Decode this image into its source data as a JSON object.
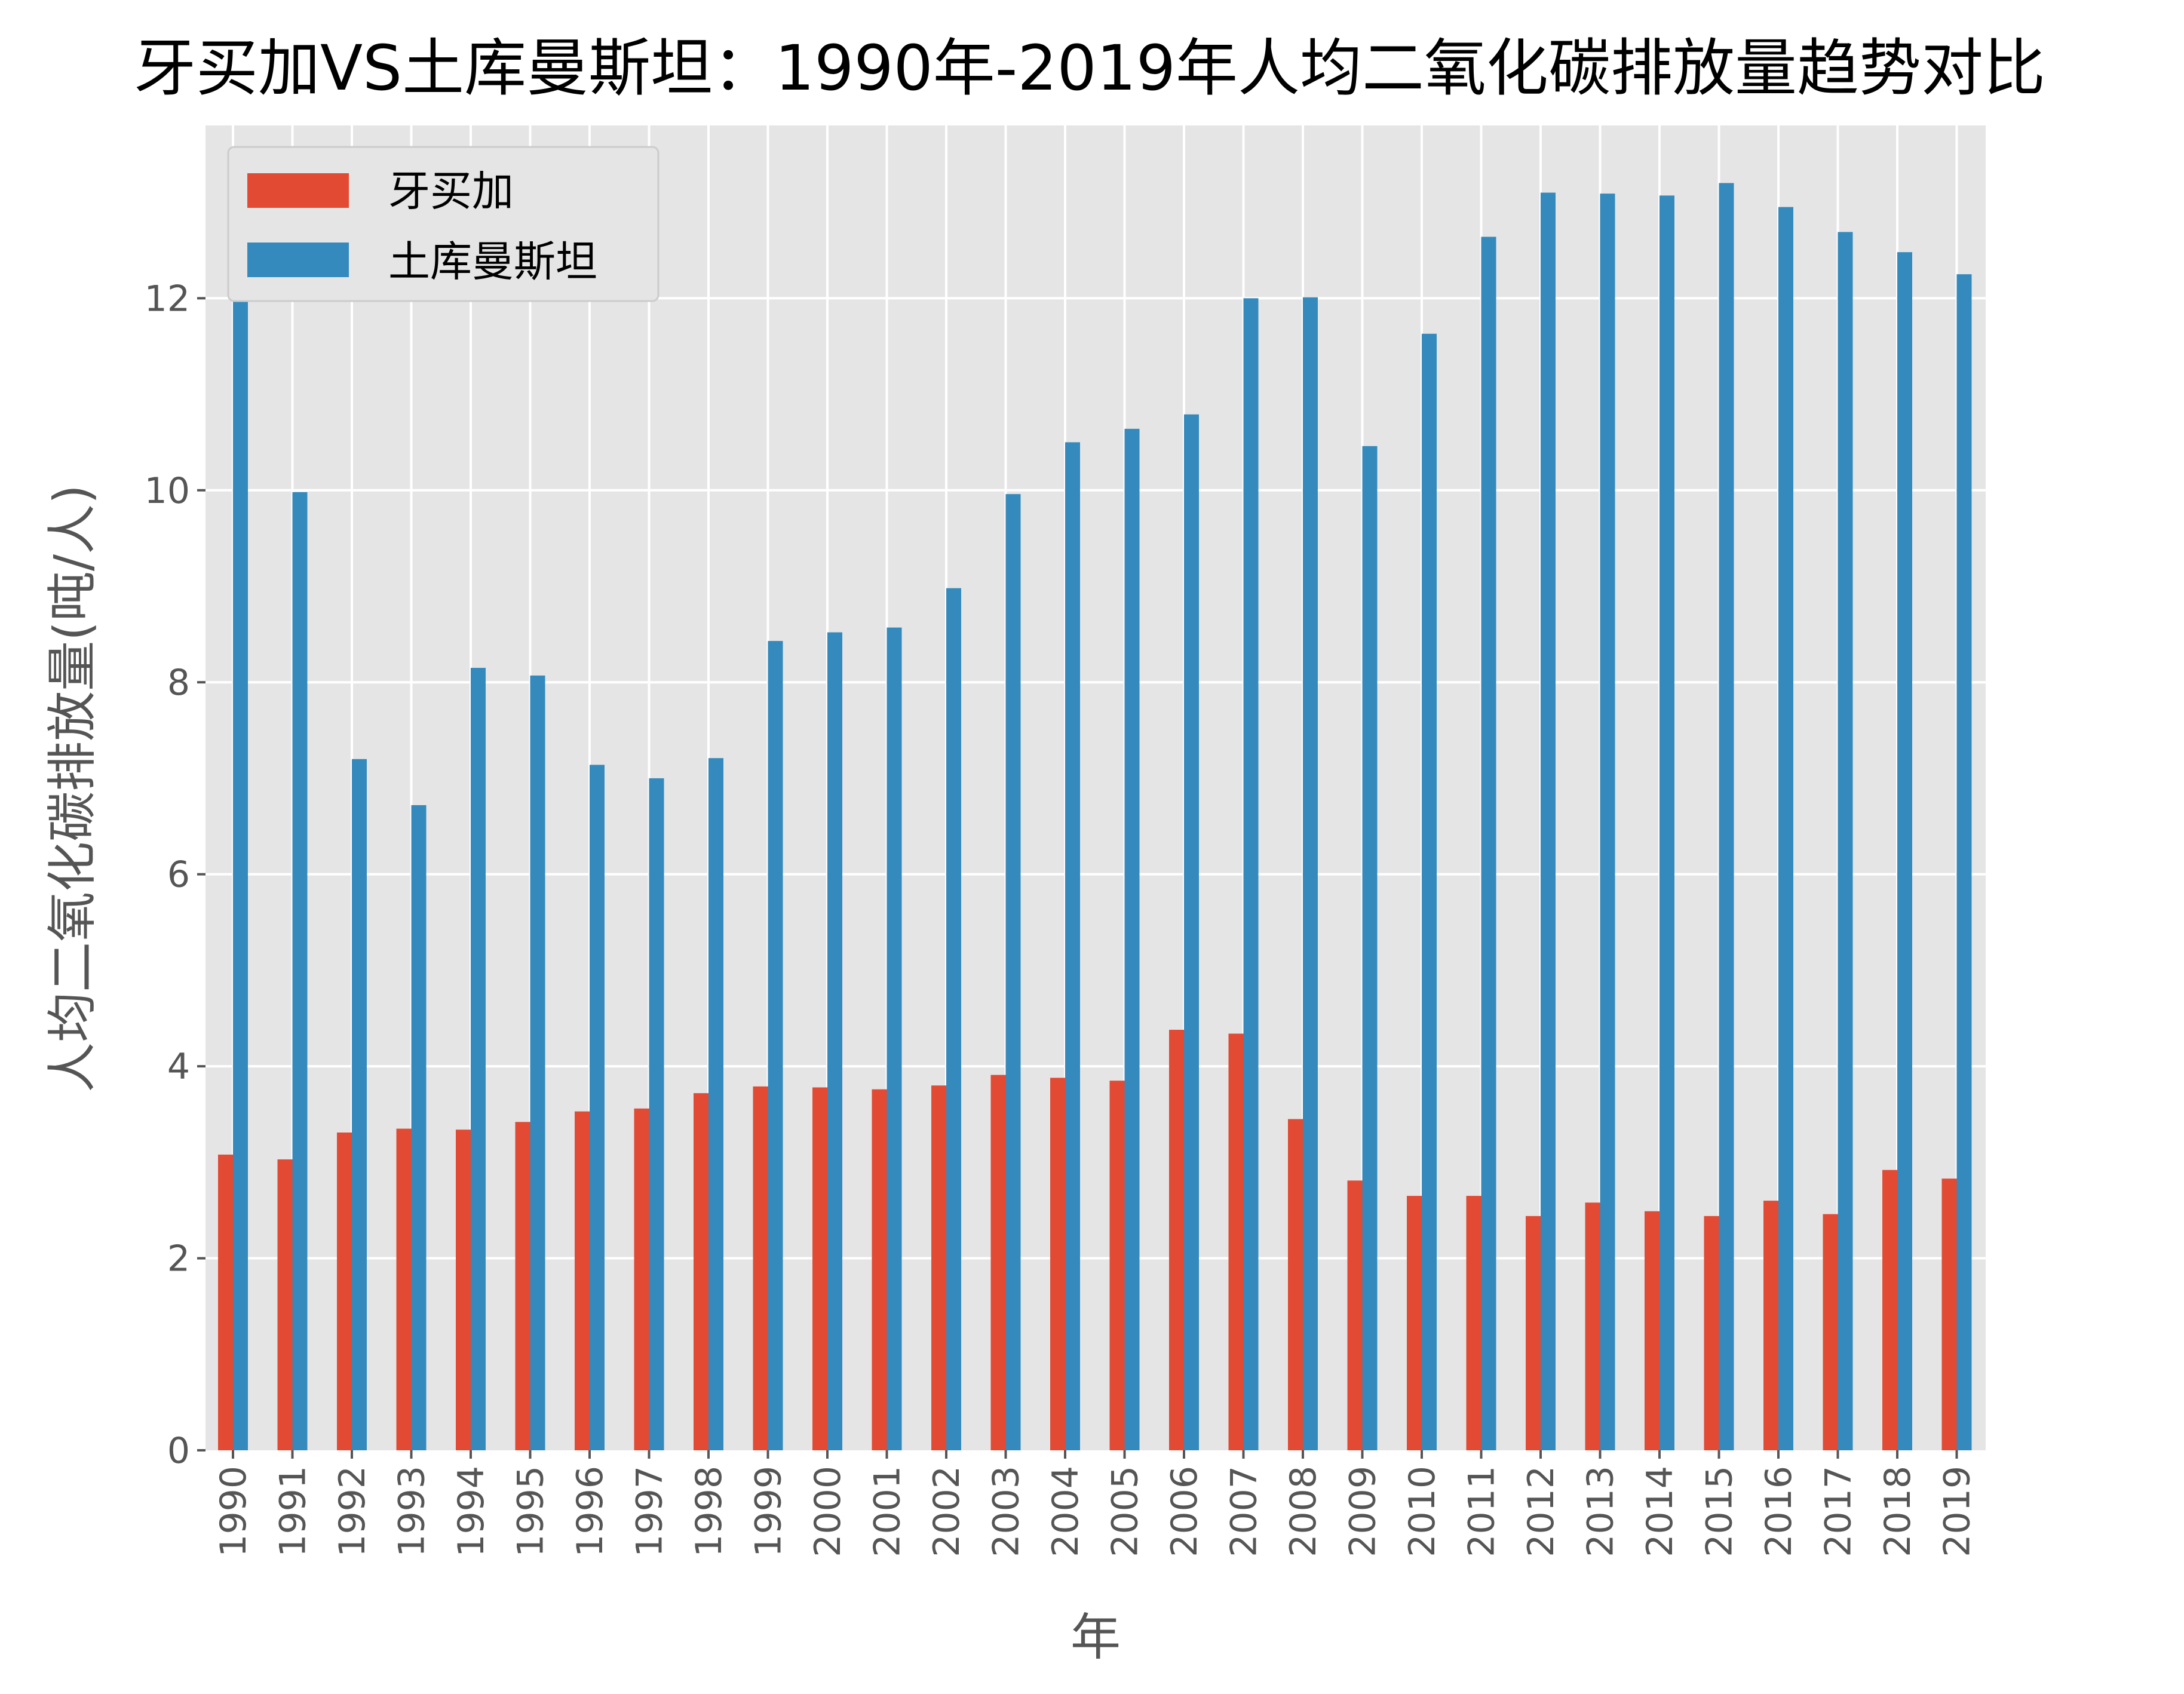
{
  "chart_data": {
    "type": "bar",
    "title": "牙买加VS土库曼斯坦：1990年-2019年人均二氧化碳排放量趋势对比",
    "xlabel": "年",
    "ylabel": "人均二氧化碳排放量(吨/人)",
    "ylim": [
      0,
      13.8
    ],
    "yticks": [
      0,
      2,
      4,
      6,
      8,
      10,
      12
    ],
    "grid": true,
    "legend_position": "top-left",
    "categories": [
      "1990",
      "1991",
      "1992",
      "1993",
      "1994",
      "1995",
      "1996",
      "1997",
      "1998",
      "1999",
      "2000",
      "2001",
      "2002",
      "2003",
      "2004",
      "2005",
      "2006",
      "2007",
      "2008",
      "2009",
      "2010",
      "2011",
      "2012",
      "2013",
      "2014",
      "2015",
      "2016",
      "2017",
      "2018",
      "2019"
    ],
    "series": [
      {
        "name": "牙买加",
        "color": "#E24A33",
        "values": [
          3.08,
          3.03,
          3.31,
          3.35,
          3.34,
          3.42,
          3.53,
          3.56,
          3.72,
          3.79,
          3.78,
          3.76,
          3.8,
          3.91,
          3.88,
          3.85,
          4.38,
          4.34,
          3.45,
          2.81,
          2.65,
          2.65,
          2.44,
          2.58,
          2.49,
          2.44,
          2.6,
          2.46,
          2.92,
          2.83
        ]
      },
      {
        "name": "土库曼斯坦",
        "color": "#348ABD",
        "values": [
          12.12,
          9.98,
          7.2,
          6.72,
          8.15,
          8.07,
          7.14,
          7.0,
          7.21,
          8.43,
          8.52,
          8.57,
          8.98,
          9.96,
          10.5,
          10.64,
          10.79,
          12.0,
          12.01,
          10.46,
          11.63,
          12.64,
          13.1,
          13.09,
          13.07,
          13.2,
          12.95,
          12.69,
          12.48,
          12.25
        ]
      }
    ]
  }
}
